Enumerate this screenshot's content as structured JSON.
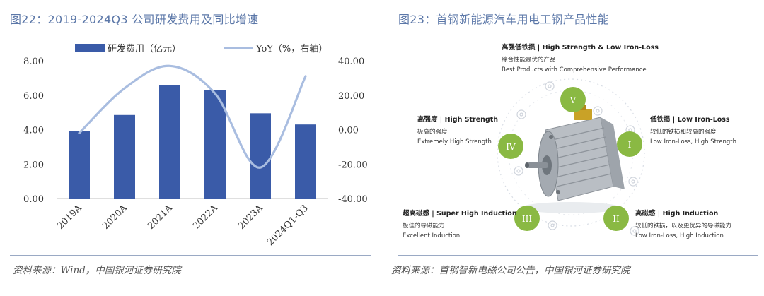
{
  "left": {
    "title": "图22：2019-2024Q3 公司研发费用及同比增速",
    "source": "资料来源：Wind，中国银河证券研究院"
  },
  "right": {
    "title": "图23：首钢新能源汽车用电工钢产品性能",
    "source": "资料来源：首钢智新电磁公司公告，中国银河证券研究院",
    "center": {
      "badge": "V",
      "title": "高强低铁损 | High Strength & Low Iron-Loss",
      "cn": "综合性能最优的产品",
      "en": "Best Products with Comprehensive Performance"
    },
    "items": [
      {
        "badge": "I",
        "title": "低铁损 | Low Iron-Loss",
        "cn": "较低的铁损和较高的强度",
        "en": "Low Iron-Loss, High Strength"
      },
      {
        "badge": "II",
        "title": "高磁感 | High Induction",
        "cn": "较低的铁损，以及更优异的导磁能力",
        "en": "Low Iron-Loss, High Induction"
      },
      {
        "badge": "III",
        "title": "超高磁感 | Super High Induction",
        "cn": "极佳的导磁能力",
        "en": "Excellent Induction"
      },
      {
        "badge": "IV",
        "title": "高强度 | High Strength",
        "cn": "极高的强度",
        "en": "Extremely High Strength"
      }
    ],
    "colors": {
      "badge_green": "#8ab943",
      "badge_text": "#ffffff"
    }
  },
  "chart_data": {
    "type": "bar",
    "categories": [
      "2019A",
      "2020A",
      "2021A",
      "2022A",
      "2023A",
      "2024Q1-Q3"
    ],
    "series": [
      {
        "name": "研发费用（亿元）",
        "type": "bar",
        "axis": "left",
        "values": [
          3.9,
          4.85,
          6.6,
          6.3,
          4.95,
          4.3
        ],
        "color": "#3a5ba8"
      },
      {
        "name": "YoY（%，右轴）",
        "type": "line",
        "axis": "right",
        "smooth": true,
        "values": [
          -2,
          24,
          37,
          21,
          -22,
          31
        ],
        "color": "#a9bde0"
      }
    ],
    "y_left": {
      "min": 0,
      "max": 8,
      "ticks": [
        "0.00",
        "2.00",
        "4.00",
        "6.00",
        "8.00"
      ]
    },
    "y_right": {
      "min": -40,
      "max": 40,
      "ticks": [
        "-40.00",
        "-20.00",
        "0.00",
        "20.00",
        "40.00"
      ]
    },
    "grid": false,
    "legend": "top"
  }
}
